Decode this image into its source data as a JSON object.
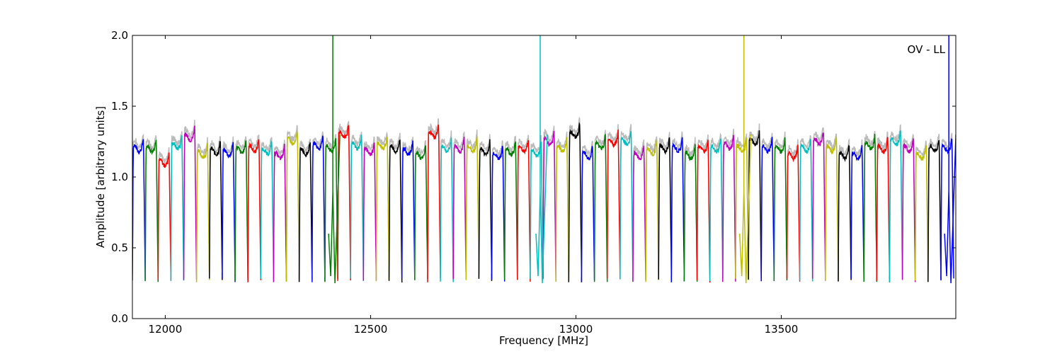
{
  "chart_data": {
    "type": "line",
    "xlabel": "Frequency [MHz]",
    "ylabel": "Amplitude [arbitrary units]",
    "annotation": "OV - LL",
    "xlim": [
      11920,
      13925
    ],
    "ylim": [
      0.0,
      2.0
    ],
    "xticks": [
      12000,
      12500,
      13000,
      13500
    ],
    "yticks": [
      0.0,
      0.5,
      1.0,
      1.5,
      2.0
    ],
    "ytick_labels": [
      "0.0",
      "0.5",
      "1.0",
      "1.5",
      "2.0"
    ],
    "grid": false,
    "channel_start": 11920,
    "channel_width": 31.25,
    "channel_count": 64,
    "color_cycle": [
      "#0000ff",
      "#007f00",
      "#ff0000",
      "#00bfbf",
      "#bf00bf",
      "#bfbf00",
      "#000000"
    ],
    "background_trace_color": "#bbbbbb",
    "channel_levels": [
      1.2,
      1.2,
      1.1,
      1.22,
      1.28,
      1.16,
      1.18,
      1.17,
      1.19,
      1.2,
      1.18,
      1.15,
      1.25,
      1.18,
      1.22,
      1.2,
      1.3,
      1.22,
      1.18,
      1.22,
      1.2,
      1.18,
      1.15,
      1.3,
      1.2,
      1.2,
      1.2,
      1.18,
      1.15,
      1.18,
      1.2,
      1.17,
      1.25,
      1.2,
      1.3,
      1.15,
      1.22,
      1.25,
      1.25,
      1.15,
      1.18,
      1.2,
      1.2,
      1.15,
      1.2,
      1.2,
      1.22,
      1.2,
      1.25,
      1.2,
      1.2,
      1.15,
      1.2,
      1.25,
      1.2,
      1.15,
      1.15,
      1.22,
      1.2,
      1.25,
      1.2,
      1.15,
      1.2,
      1.2
    ],
    "spikes": [
      {
        "x": 12408,
        "y": 2.0,
        "color": "#007f00"
      },
      {
        "x": 12913,
        "y": 2.0,
        "color": "#00bfbf"
      },
      {
        "x": 13409,
        "y": 2.0,
        "color": "#bfbf00"
      },
      {
        "x": 13908,
        "y": 2.0,
        "color": "#0000ff"
      }
    ]
  }
}
